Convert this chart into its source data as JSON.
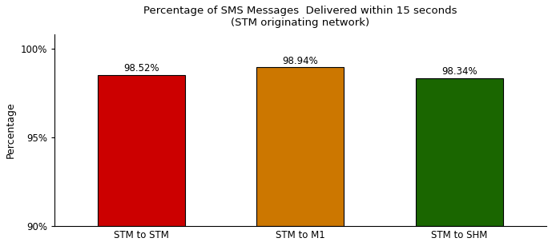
{
  "title_line1": "Percentage of SMS Messages  Delivered within 15 seconds",
  "title_line2": "(STM originating network)",
  "categories": [
    "STM to STM",
    "STM to M1",
    "STM to SHM"
  ],
  "values": [
    98.52,
    98.94,
    98.34
  ],
  "labels": [
    "98.52%",
    "98.94%",
    "98.34%"
  ],
  "bar_colors": [
    "#cc0000",
    "#cc7700",
    "#1a6600"
  ],
  "ylabel": "Percentage",
  "ylim": [
    90,
    100.8
  ],
  "yticks": [
    90,
    95,
    100
  ],
  "ytick_labels": [
    "90%",
    "95%",
    "100%"
  ],
  "background_color": "#ffffff",
  "bar_edge_color": "#000000",
  "title_fontsize": 9.5,
  "label_fontsize": 8.5,
  "axis_label_fontsize": 9,
  "tick_fontsize": 8.5,
  "bar_width": 0.55,
  "xlim": [
    -0.55,
    2.55
  ]
}
